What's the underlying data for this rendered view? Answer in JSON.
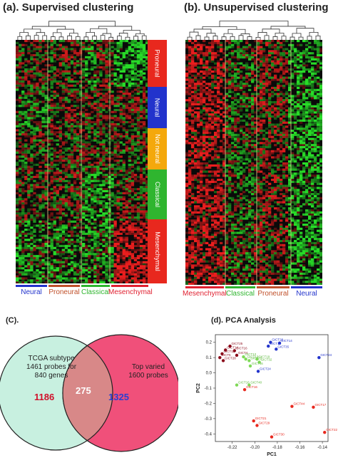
{
  "panel_a": {
    "title": "(a). Supervised clustering",
    "sidebar": [
      {
        "label": "Proneural",
        "color": "#e8281e"
      },
      {
        "label": "Neural",
        "color": "#2233cc"
      },
      {
        "label": "Not neural",
        "color": "#f4a80c"
      },
      {
        "label": "Classical",
        "color": "#2fb52f"
      },
      {
        "label": "Mesenchymal",
        "color": "#e8281e"
      }
    ],
    "columns": [
      {
        "label": "Neural",
        "color": "#2233cc"
      },
      {
        "label": "Proneural",
        "color": "#c0502a"
      },
      {
        "label": "Classical",
        "color": "#2fb52f"
      },
      {
        "label": "Mesenchymal",
        "color": "#e02030"
      }
    ]
  },
  "panel_b": {
    "title": "(b). Unsupervised clustering",
    "columns": [
      {
        "label": "Mesenchymal",
        "color": "#e02030"
      },
      {
        "label": "Classical",
        "color": "#2fb52f"
      },
      {
        "label": "Proneural",
        "color": "#c0502a"
      },
      {
        "label": "Neural",
        "color": "#2233cc"
      }
    ]
  },
  "panel_c": {
    "title": "(C).",
    "left_label": "TCGA subtype\n1461 probes for\n840 genes",
    "right_label": "Top varied\n1600 probes",
    "left_count": "1186",
    "overlap_count": "275",
    "right_count": "1325",
    "left_color": "#c8f0e0",
    "right_color": "#f0507a"
  },
  "panel_d": {
    "title": "(d). PCA Analysis",
    "chart_data": {
      "type": "scatter",
      "xlabel": "PC1",
      "ylabel": "PC2",
      "xlim": [
        -0.235,
        -0.135
      ],
      "ylim": [
        -0.45,
        0.25
      ],
      "xticks": [
        "-0.22",
        "-0.20",
        "-0.18",
        "-0.16",
        "-0.14"
      ],
      "yticks": [
        "0.2",
        "0.1",
        "0.0",
        "-0.1",
        "-0.2",
        "-0.3",
        "-0.4"
      ],
      "points": [
        {
          "label": "GICT25",
          "x": -0.222,
          "y": 0.175,
          "color": "#8b0a1a"
        },
        {
          "label": "GICT14",
          "x": -0.226,
          "y": 0.15,
          "color": "#8b0a1a"
        },
        {
          "label": "GICT16",
          "x": -0.218,
          "y": 0.145,
          "color": "#8b0a1a"
        },
        {
          "label": "GICT11",
          "x": -0.229,
          "y": 0.125,
          "color": "#8b0a1a"
        },
        {
          "label": "GICT5",
          "x": -0.231,
          "y": 0.1,
          "color": "#8b0a1a"
        },
        {
          "label": "GICT28",
          "x": -0.228,
          "y": 0.08,
          "color": "#8b0a1a"
        },
        {
          "label": "GICT4",
          "x": -0.216,
          "y": 0.115,
          "color": "#8b0a1a"
        },
        {
          "label": "GICT12",
          "x": -0.21,
          "y": 0.105,
          "color": "#7ed957"
        },
        {
          "label": "GICT13",
          "x": -0.208,
          "y": 0.09,
          "color": "#7ed957"
        },
        {
          "label": "GICT22",
          "x": -0.205,
          "y": 0.08,
          "color": "#7ed957"
        },
        {
          "label": "GICT19",
          "x": -0.198,
          "y": 0.09,
          "color": "#7ed957"
        },
        {
          "label": "GICT32",
          "x": -0.196,
          "y": 0.07,
          "color": "#7ed957"
        },
        {
          "label": "GICT46",
          "x": -0.204,
          "y": 0.045,
          "color": "#7ed957"
        },
        {
          "label": "GICT20",
          "x": -0.186,
          "y": 0.2,
          "color": "#2233cc"
        },
        {
          "label": "GICT14",
          "x": -0.178,
          "y": 0.195,
          "color": "#2233cc"
        },
        {
          "label": "GICT13",
          "x": -0.188,
          "y": 0.175,
          "color": "#2233cc"
        },
        {
          "label": "GICT35",
          "x": -0.181,
          "y": 0.155,
          "color": "#2233cc"
        },
        {
          "label": "GICT24",
          "x": -0.143,
          "y": 0.1,
          "color": "#2233cc"
        },
        {
          "label": "GICT24",
          "x": -0.197,
          "y": 0.01,
          "color": "#2233cc"
        },
        {
          "label": "GICT16",
          "x": -0.216,
          "y": -0.08,
          "color": "#7ed957"
        },
        {
          "label": "GICT40",
          "x": -0.205,
          "y": -0.08,
          "color": "#7ed957"
        },
        {
          "label": "GICT16",
          "x": -0.209,
          "y": -0.11,
          "color": "#e8281e"
        },
        {
          "label": "GICT44",
          "x": -0.167,
          "y": -0.22,
          "color": "#e8281e"
        },
        {
          "label": "GICT17",
          "x": -0.148,
          "y": -0.225,
          "color": "#e8281e"
        },
        {
          "label": "GICT21",
          "x": -0.201,
          "y": -0.315,
          "color": "#e8281e"
        },
        {
          "label": "GICT29",
          "x": -0.198,
          "y": -0.345,
          "color": "#e8281e"
        },
        {
          "label": "GICT22",
          "x": -0.138,
          "y": -0.39,
          "color": "#e8281e"
        },
        {
          "label": "GICT30",
          "x": -0.185,
          "y": -0.42,
          "color": "#e8281e"
        }
      ]
    }
  }
}
